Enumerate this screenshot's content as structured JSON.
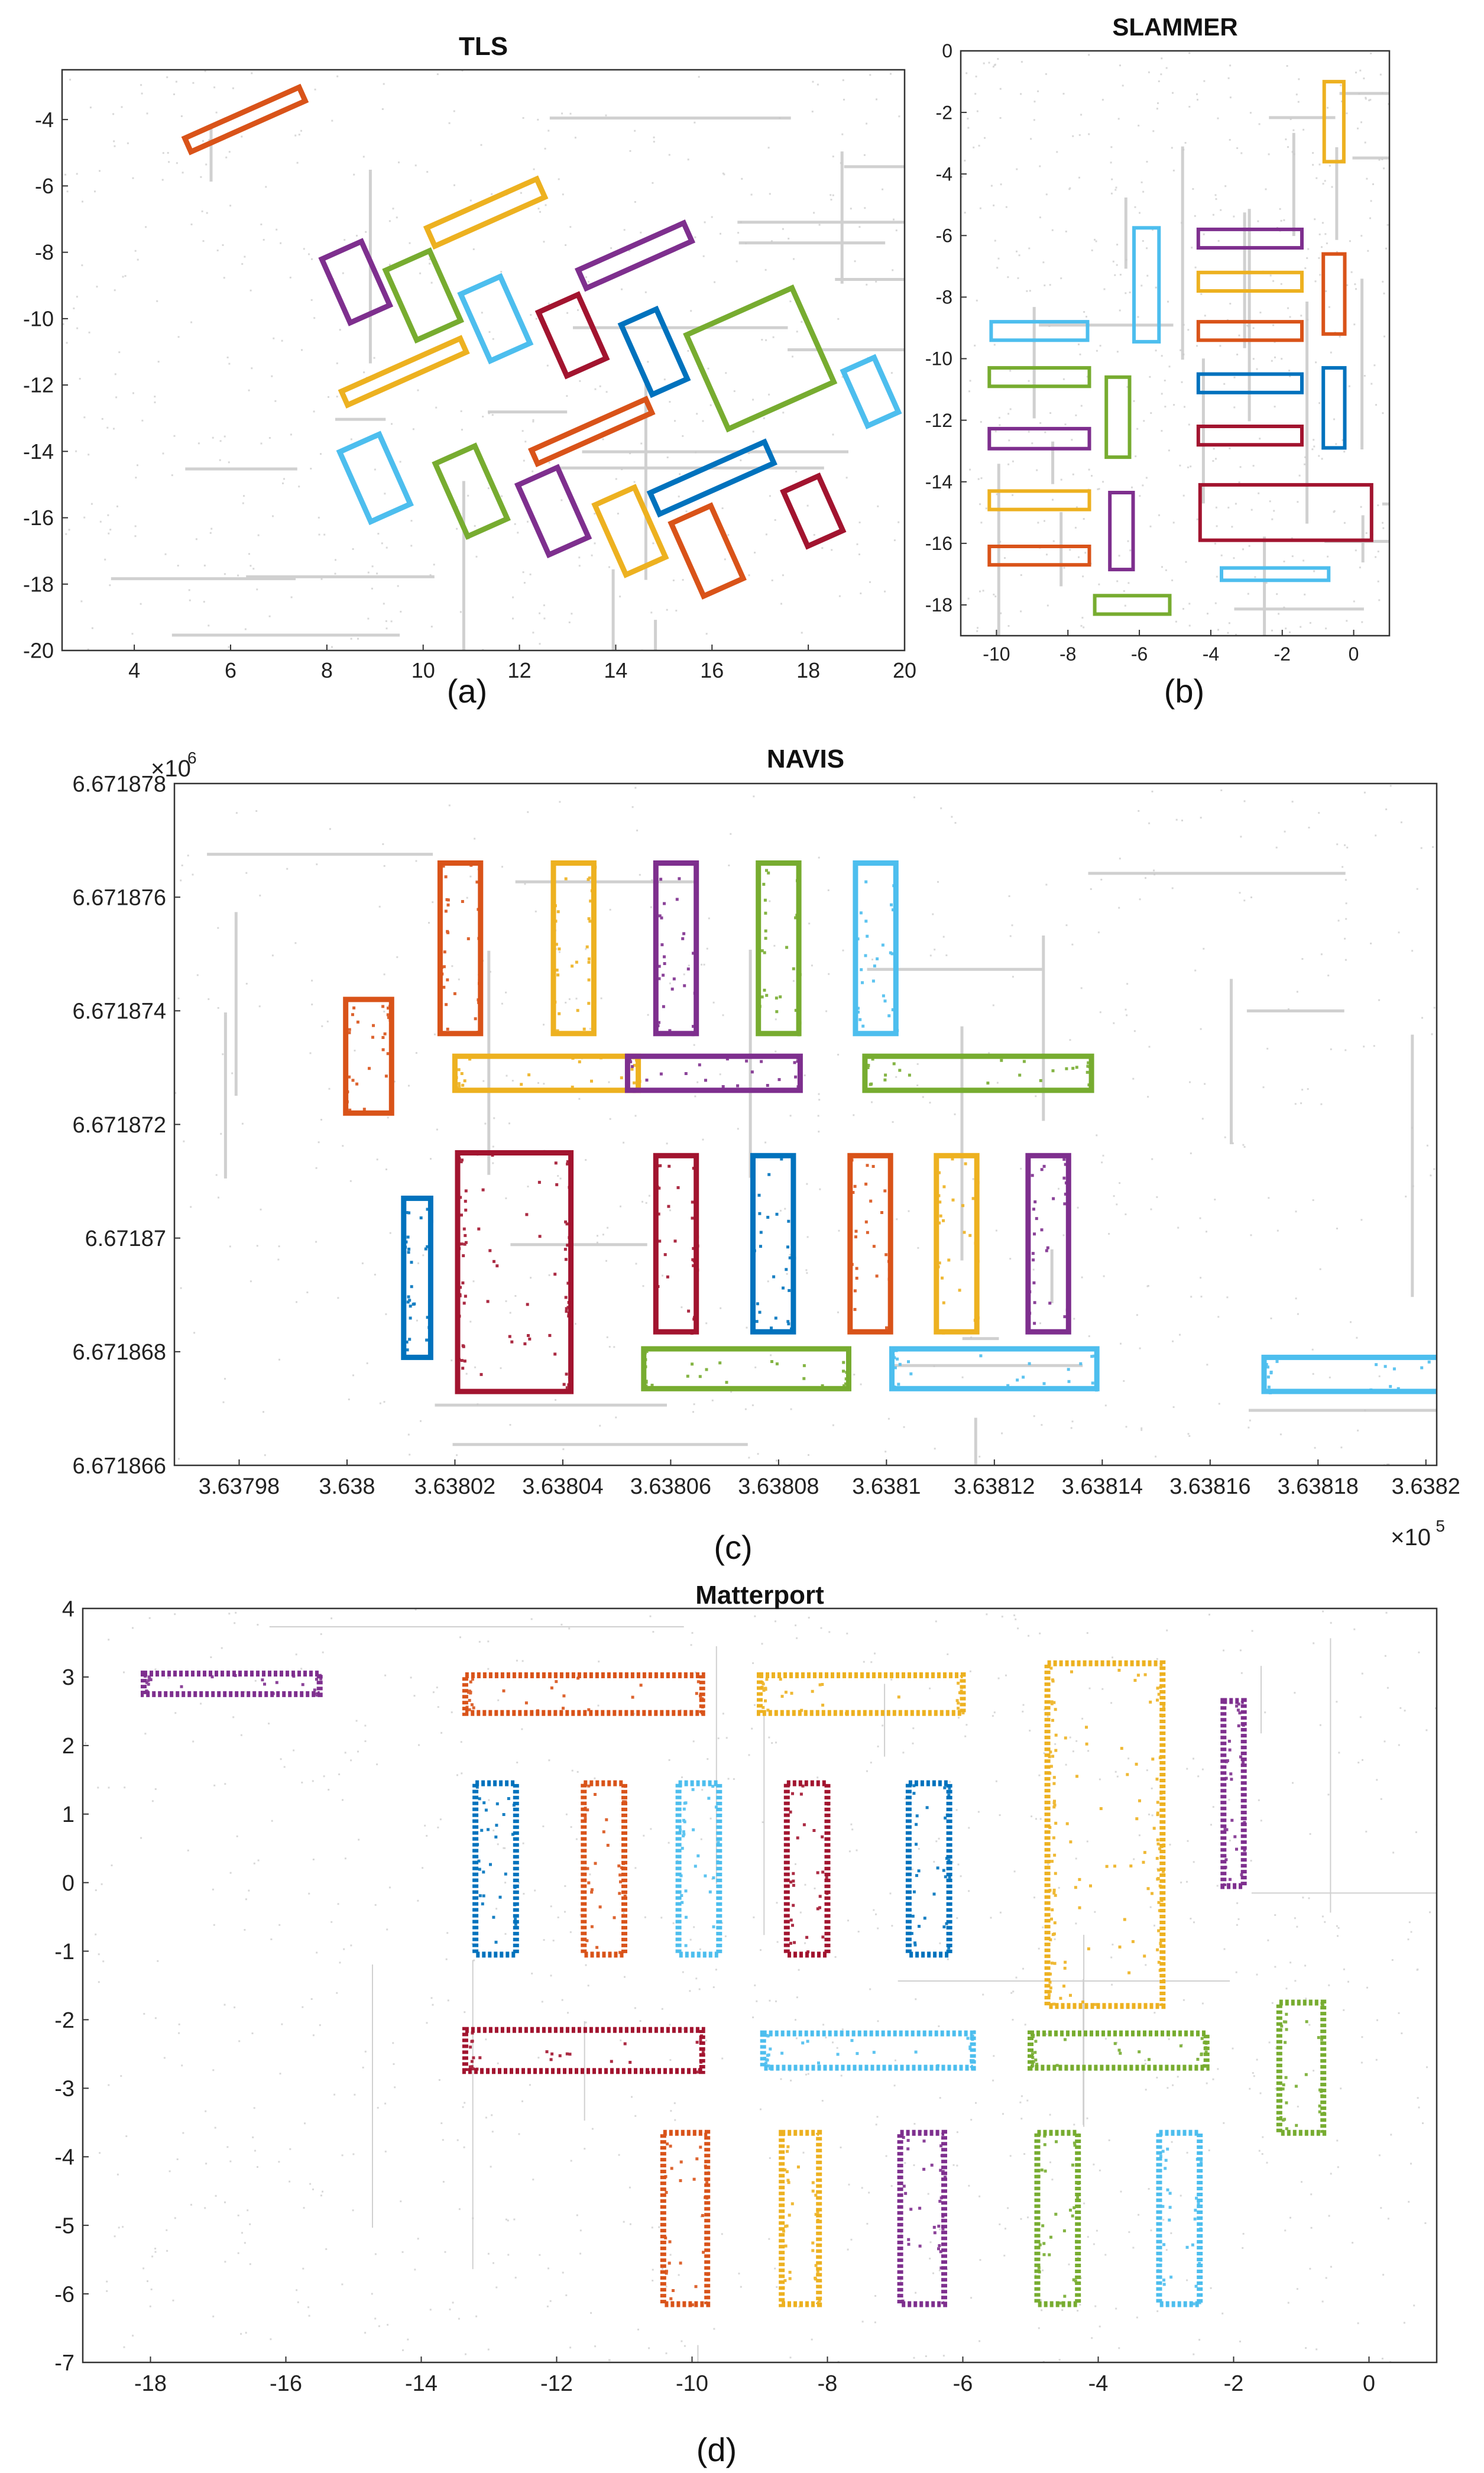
{
  "figure": {
    "captions": [
      "(a)",
      "(b)",
      "(c)",
      "(d)"
    ]
  },
  "colors": {
    "orange": "#D95319",
    "yellow": "#EDB120",
    "purple": "#7E2F8E",
    "green": "#77AC30",
    "cyan": "#4DBEEE",
    "red": "#A2142F",
    "blue": "#0072BD",
    "background_points": "#c8c8c8"
  },
  "chart_data": [
    {
      "id": "a",
      "type": "scatter",
      "title": "TLS",
      "caption": "(a)",
      "xlim": [
        2.5,
        20
      ],
      "ylim": [
        -20,
        -2.5
      ],
      "xticks": [
        4,
        6,
        8,
        10,
        12,
        14,
        16,
        18,
        20
      ],
      "yticks": [
        -4,
        -6,
        -8,
        -10,
        -12,
        -14,
        -16,
        -18,
        -20
      ],
      "xtick_labels": [
        "4",
        "6",
        "8",
        "10",
        "12",
        "14",
        "16",
        "18",
        "20"
      ],
      "ytick_labels": [
        "-4",
        "-6",
        "-8",
        "-10",
        "-12",
        "-14",
        "-16",
        "-18",
        "-20"
      ],
      "rotation_deg": -24,
      "objects": [
        {
          "color": "orange",
          "cx": 6.3,
          "cy": -4.0,
          "w": 2.6,
          "h": 0.45
        },
        {
          "color": "yellow",
          "cx": 11.3,
          "cy": -6.8,
          "w": 2.5,
          "h": 0.6
        },
        {
          "color": "purple",
          "cx": 14.4,
          "cy": -8.1,
          "w": 2.4,
          "h": 0.6
        },
        {
          "color": "purple",
          "cx": 8.6,
          "cy": -8.9,
          "w": 0.9,
          "h": 2.1
        },
        {
          "color": "green",
          "cx": 10.0,
          "cy": -9.3,
          "w": 1.0,
          "h": 2.3
        },
        {
          "color": "cyan",
          "cx": 11.5,
          "cy": -10.0,
          "w": 0.9,
          "h": 2.2
        },
        {
          "color": "red",
          "cx": 13.1,
          "cy": -10.5,
          "w": 0.9,
          "h": 2.1
        },
        {
          "color": "blue",
          "cx": 14.8,
          "cy": -11.0,
          "w": 0.8,
          "h": 2.3
        },
        {
          "color": "green",
          "cx": 17.0,
          "cy": -11.2,
          "w": 2.4,
          "h": 3.1
        },
        {
          "color": "cyan",
          "cx": 19.3,
          "cy": -12.2,
          "w": 0.7,
          "h": 1.8
        },
        {
          "color": "yellow",
          "cx": 9.6,
          "cy": -11.6,
          "w": 2.7,
          "h": 0.45
        },
        {
          "color": "orange",
          "cx": 13.5,
          "cy": -13.4,
          "w": 2.6,
          "h": 0.45
        },
        {
          "color": "blue",
          "cx": 16.0,
          "cy": -14.8,
          "w": 2.6,
          "h": 0.7
        },
        {
          "color": "cyan",
          "cx": 9.0,
          "cy": -14.8,
          "w": 0.9,
          "h": 2.3
        },
        {
          "color": "green",
          "cx": 11.0,
          "cy": -15.2,
          "w": 0.9,
          "h": 2.4
        },
        {
          "color": "purple",
          "cx": 12.7,
          "cy": -15.8,
          "w": 0.9,
          "h": 2.3
        },
        {
          "color": "yellow",
          "cx": 14.3,
          "cy": -16.4,
          "w": 0.9,
          "h": 2.3
        },
        {
          "color": "orange",
          "cx": 15.9,
          "cy": -17.0,
          "w": 0.9,
          "h": 2.4
        },
        {
          "color": "red",
          "cx": 18.1,
          "cy": -15.8,
          "w": 0.8,
          "h": 1.8
        }
      ]
    },
    {
      "id": "b",
      "type": "scatter",
      "title": "SLAMMER",
      "caption": "(b)",
      "xlim": [
        -11,
        1
      ],
      "ylim": [
        -19,
        0
      ],
      "xticks": [
        -10,
        -8,
        -6,
        -4,
        -2,
        0
      ],
      "yticks": [
        0,
        -2,
        -4,
        -6,
        -8,
        -10,
        -12,
        -14,
        -16,
        -18
      ],
      "xtick_labels": [
        "-10",
        "-8",
        "-6",
        "-4",
        "-2",
        "0"
      ],
      "ytick_labels": [
        "0",
        "-2",
        "-4",
        "-6",
        "-8",
        "-10",
        "-12",
        "-14",
        "-16",
        "-18"
      ],
      "rotation_deg": 0,
      "objects": [
        {
          "color": "yellow",
          "cx": -0.55,
          "cy": -2.3,
          "w": 0.55,
          "h": 2.6
        },
        {
          "color": "cyan",
          "cx": -8.8,
          "cy": -9.1,
          "w": 2.7,
          "h": 0.6
        },
        {
          "color": "cyan",
          "cx": -5.8,
          "cy": -7.6,
          "w": 0.7,
          "h": 3.7
        },
        {
          "color": "purple",
          "cx": -2.9,
          "cy": -6.1,
          "w": 2.9,
          "h": 0.6
        },
        {
          "color": "yellow",
          "cx": -2.9,
          "cy": -7.5,
          "w": 2.9,
          "h": 0.6
        },
        {
          "color": "orange",
          "cx": -2.9,
          "cy": -9.1,
          "w": 2.9,
          "h": 0.6
        },
        {
          "color": "orange",
          "cx": -0.55,
          "cy": -7.9,
          "w": 0.6,
          "h": 2.6
        },
        {
          "color": "green",
          "cx": -8.8,
          "cy": -10.6,
          "w": 2.8,
          "h": 0.6
        },
        {
          "color": "green",
          "cx": -6.6,
          "cy": -11.9,
          "w": 0.65,
          "h": 2.6
        },
        {
          "color": "blue",
          "cx": -2.9,
          "cy": -10.8,
          "w": 2.9,
          "h": 0.6
        },
        {
          "color": "blue",
          "cx": -0.55,
          "cy": -11.6,
          "w": 0.6,
          "h": 2.6
        },
        {
          "color": "purple",
          "cx": -8.8,
          "cy": -12.6,
          "w": 2.8,
          "h": 0.65
        },
        {
          "color": "red",
          "cx": -2.9,
          "cy": -12.5,
          "w": 2.9,
          "h": 0.6
        },
        {
          "color": "yellow",
          "cx": -8.8,
          "cy": -14.6,
          "w": 2.8,
          "h": 0.6
        },
        {
          "color": "purple",
          "cx": -6.5,
          "cy": -15.6,
          "w": 0.65,
          "h": 2.5
        },
        {
          "color": "red",
          "cx": -1.9,
          "cy": -15.0,
          "w": 4.8,
          "h": 1.8
        },
        {
          "color": "orange",
          "cx": -8.8,
          "cy": -16.4,
          "w": 2.8,
          "h": 0.6
        },
        {
          "color": "cyan",
          "cx": -2.2,
          "cy": -17.0,
          "w": 3.0,
          "h": 0.4
        },
        {
          "color": "green",
          "cx": -6.2,
          "cy": -18.0,
          "w": 2.1,
          "h": 0.6
        }
      ]
    },
    {
      "id": "c",
      "type": "scatter",
      "title": "NAVIS",
      "caption": "(c)",
      "xlim": [
        363796.8,
        363820.2
      ],
      "ylim": [
        6671866,
        6671878
      ],
      "x_multiplier": "×10",
      "x_multiplier_exp": "5",
      "y_multiplier": "×10",
      "y_multiplier_exp": "6",
      "xticks": [
        363798,
        363800,
        363802,
        363804,
        363806,
        363808,
        363810,
        363812,
        363814,
        363816,
        363818,
        363820
      ],
      "xtick_labels": [
        "3.63798",
        "3.638",
        "3.63802",
        "3.63804",
        "3.63806",
        "3.63808",
        "3.6381",
        "3.63812",
        "3.63814",
        "3.63816",
        "3.63818",
        "3.6382"
      ],
      "yticks": [
        6671866,
        6671868,
        6671870,
        6671872,
        6671874,
        6671876,
        6671878
      ],
      "ytick_labels": [
        "6.671866",
        "6.671868",
        "6.67187",
        "6.671872",
        "6.671874",
        "6.671876",
        "6.671878"
      ],
      "rotation_deg": 0,
      "objects": [
        {
          "color": "orange",
          "cx": 363802.1,
          "cy": 6671875.1,
          "w": 0.75,
          "h": 3.0
        },
        {
          "color": "yellow",
          "cx": 363804.2,
          "cy": 6671875.1,
          "w": 0.75,
          "h": 3.0
        },
        {
          "color": "purple",
          "cx": 363806.1,
          "cy": 6671875.1,
          "w": 0.75,
          "h": 3.0
        },
        {
          "color": "green",
          "cx": 363808.0,
          "cy": 6671875.1,
          "w": 0.75,
          "h": 3.0
        },
        {
          "color": "cyan",
          "cx": 363809.8,
          "cy": 6671875.1,
          "w": 0.75,
          "h": 3.0
        },
        {
          "color": "orange",
          "cx": 363800.4,
          "cy": 6671873.2,
          "w": 0.85,
          "h": 2.0
        },
        {
          "color": "yellow",
          "cx": 363803.7,
          "cy": 6671872.9,
          "w": 3.4,
          "h": 0.6
        },
        {
          "color": "purple",
          "cx": 363806.8,
          "cy": 6671872.9,
          "w": 3.2,
          "h": 0.6
        },
        {
          "color": "green",
          "cx": 363811.7,
          "cy": 6671872.9,
          "w": 4.2,
          "h": 0.6
        },
        {
          "color": "blue",
          "cx": 363801.3,
          "cy": 6671869.3,
          "w": 0.5,
          "h": 2.8
        },
        {
          "color": "red",
          "cx": 363803.1,
          "cy": 6671869.4,
          "w": 2.1,
          "h": 4.2
        },
        {
          "color": "red",
          "cx": 363806.1,
          "cy": 6671869.9,
          "w": 0.75,
          "h": 3.1
        },
        {
          "color": "blue",
          "cx": 363807.9,
          "cy": 6671869.9,
          "w": 0.75,
          "h": 3.1
        },
        {
          "color": "orange",
          "cx": 363809.7,
          "cy": 6671869.9,
          "w": 0.75,
          "h": 3.1
        },
        {
          "color": "yellow",
          "cx": 363811.3,
          "cy": 6671869.9,
          "w": 0.75,
          "h": 3.1
        },
        {
          "color": "purple",
          "cx": 363813.0,
          "cy": 6671869.9,
          "w": 0.75,
          "h": 3.1
        },
        {
          "color": "green",
          "cx": 363807.4,
          "cy": 6671867.7,
          "w": 3.8,
          "h": 0.7
        },
        {
          "color": "cyan",
          "cx": 363812.0,
          "cy": 6671867.7,
          "w": 3.8,
          "h": 0.7
        },
        {
          "color": "cyan",
          "cx": 363818.8,
          "cy": 6671867.6,
          "w": 3.6,
          "h": 0.6
        }
      ]
    },
    {
      "id": "d",
      "type": "scatter",
      "title": "Matterport",
      "caption": "(d)",
      "xlim": [
        -19,
        1
      ],
      "ylim": [
        -7,
        4
      ],
      "xticks": [
        -18,
        -16,
        -14,
        -12,
        -10,
        -8,
        -6,
        -4,
        -2,
        0
      ],
      "xtick_labels": [
        "-18",
        "-16",
        "-14",
        "-12",
        "-10",
        "-8",
        "-6",
        "-4",
        "-2",
        "0"
      ],
      "yticks": [
        4,
        3,
        2,
        1,
        0,
        -1,
        -2,
        -3,
        -4,
        -5,
        -6,
        -7
      ],
      "ytick_labels": [
        "4",
        "3",
        "2",
        "1",
        "0",
        "-1",
        "-2",
        "-3",
        "-4",
        "-5",
        "-6",
        "-7"
      ],
      "rotation_deg": 0,
      "objects": [
        {
          "color": "purple",
          "cx": -16.8,
          "cy": 2.9,
          "w": 2.6,
          "h": 0.3
        },
        {
          "color": "orange",
          "cx": -11.6,
          "cy": 2.75,
          "w": 3.5,
          "h": 0.55
        },
        {
          "color": "yellow",
          "cx": -7.5,
          "cy": 2.75,
          "w": 3.0,
          "h": 0.55
        },
        {
          "color": "yellow",
          "cx": -3.9,
          "cy": 0.7,
          "w": 1.7,
          "h": 5.0
        },
        {
          "color": "purple",
          "cx": -2.0,
          "cy": 1.3,
          "w": 0.3,
          "h": 2.7
        },
        {
          "color": "blue",
          "cx": -12.9,
          "cy": 0.2,
          "w": 0.6,
          "h": 2.5
        },
        {
          "color": "orange",
          "cx": -11.3,
          "cy": 0.2,
          "w": 0.6,
          "h": 2.5
        },
        {
          "color": "cyan",
          "cx": -9.9,
          "cy": 0.2,
          "w": 0.6,
          "h": 2.5
        },
        {
          "color": "red",
          "cx": -8.3,
          "cy": 0.2,
          "w": 0.6,
          "h": 2.5
        },
        {
          "color": "blue",
          "cx": -6.5,
          "cy": 0.2,
          "w": 0.6,
          "h": 2.5
        },
        {
          "color": "red",
          "cx": -11.6,
          "cy": -2.45,
          "w": 3.5,
          "h": 0.6
        },
        {
          "color": "cyan",
          "cx": -7.4,
          "cy": -2.45,
          "w": 3.1,
          "h": 0.5
        },
        {
          "color": "green",
          "cx": -3.7,
          "cy": -2.45,
          "w": 2.6,
          "h": 0.5
        },
        {
          "color": "green",
          "cx": -1.0,
          "cy": -2.7,
          "w": 0.65,
          "h": 1.9
        },
        {
          "color": "orange",
          "cx": -10.1,
          "cy": -4.9,
          "w": 0.65,
          "h": 2.5
        },
        {
          "color": "yellow",
          "cx": -8.4,
          "cy": -4.9,
          "w": 0.55,
          "h": 2.5
        },
        {
          "color": "purple",
          "cx": -6.6,
          "cy": -4.9,
          "w": 0.65,
          "h": 2.5
        },
        {
          "color": "green",
          "cx": -4.6,
          "cy": -4.9,
          "w": 0.6,
          "h": 2.5
        },
        {
          "color": "cyan",
          "cx": -2.8,
          "cy": -4.9,
          "w": 0.6,
          "h": 2.5
        }
      ]
    }
  ]
}
